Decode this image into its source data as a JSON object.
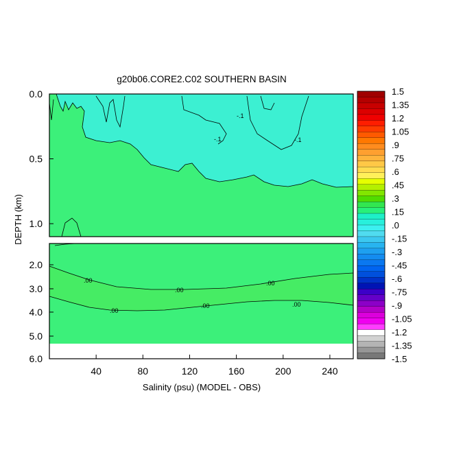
{
  "chart_data": {
    "type": "heatmap",
    "title": "g20b06.CORE2.C02 SOUTHERN BASIN",
    "xlabel": "Salinity (psu) (MODEL - OBS)",
    "ylabel": "DEPTH (km)",
    "x_ticks": [
      "40",
      "80",
      "120",
      "160",
      "200",
      "240"
    ],
    "xlim": [
      0,
      260
    ],
    "top_panel": {
      "ylim": [
        0.0,
        1.1
      ],
      "y_ticks": [
        "0.0",
        "0.5",
        "1.0"
      ],
      "contour_labels": [
        "-.1",
        "-.1",
        "-.1"
      ]
    },
    "bottom_panel": {
      "ylim": [
        1.1,
        6.0
      ],
      "y_ticks": [
        "2.0",
        "3.0",
        "4.0",
        "5.0",
        "6.0"
      ],
      "contour_labels": [
        ".00",
        ".00",
        ".00",
        ".00",
        ".00",
        ".00"
      ]
    },
    "colorbar": {
      "labels": [
        "1.5",
        "1.35",
        "1.2",
        "1.05",
        ".9",
        ".75",
        ".6",
        ".45",
        ".3",
        ".15",
        ".0",
        "-.15",
        "-.3",
        "-.45",
        "-.6",
        "-.75",
        "-.9",
        "-1.05",
        "-1.2",
        "-1.35",
        "-1.5"
      ],
      "colors": [
        "#a00000",
        "#b40000",
        "#c80000",
        "#dc0000",
        "#f00000",
        "#ff1e00",
        "#ff3c00",
        "#ff5a00",
        "#ff7800",
        "#ff8c1e",
        "#ffa030",
        "#ffb43c",
        "#ffc846",
        "#ffdc50",
        "#fff05a",
        "#e6ff00",
        "#b4f000",
        "#82e600",
        "#50dc00",
        "#32e650",
        "#28f07a",
        "#1ef0c8",
        "#28f0dc",
        "#3cf0f0",
        "#50dcf0",
        "#3cc8f0",
        "#28b4f0",
        "#1ea0f0",
        "#148cf0",
        "#0a78f0",
        "#0064f0",
        "#0050dc",
        "#0032c8",
        "#0014b4",
        "#3c00c8",
        "#6400c8",
        "#8c00c8",
        "#b400c8",
        "#dc00dc",
        "#f000f0",
        "#ff3cff",
        "#ffffff",
        "#d2d2d2",
        "#b4b4b4",
        "#969696",
        "#787878"
      ]
    },
    "fill_colors": {
      "positive_small": "#3cf07a",
      "negative_small": "#3cf0d2",
      "no_data": "#ffffff"
    },
    "grid": false
  }
}
